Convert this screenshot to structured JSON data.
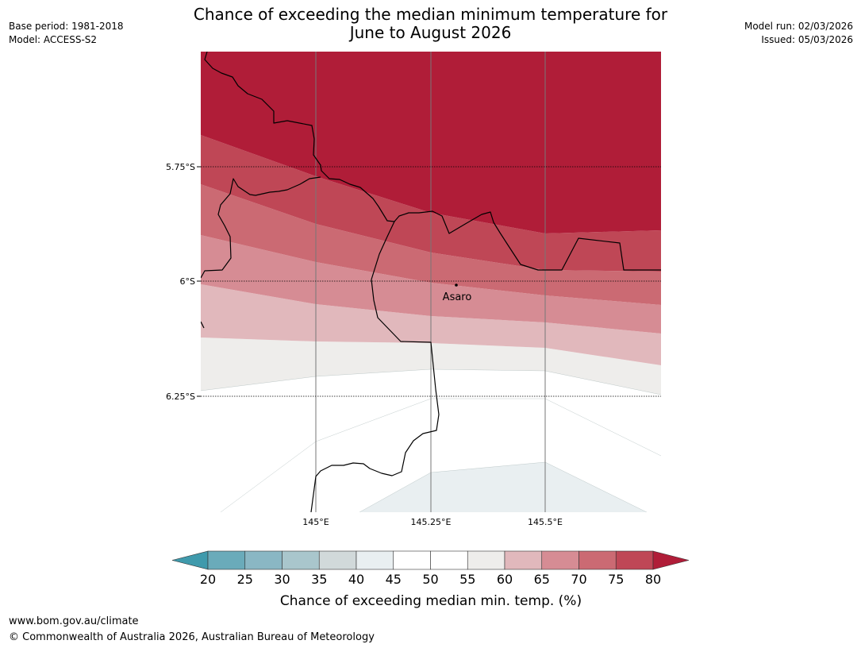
{
  "header": {
    "base_period": "Base period: 1981-2018",
    "model": "Model: ACCESS-S2",
    "title_line1": "Chance of exceeding the median minimum temperature for",
    "title_line2": "June to August 2026",
    "model_run": "Model run: 02/03/2026",
    "issued": "Issued: 05/03/2026"
  },
  "map": {
    "lat_labels": [
      "5.75°S",
      "6°S",
      "6.25°S"
    ],
    "lon_labels": [
      "145°E",
      "145.25°E",
      "145.5°E"
    ],
    "place": {
      "name": "Asaro"
    }
  },
  "colorbar": {
    "ticks": [
      "20",
      "25",
      "30",
      "35",
      "40",
      "45",
      "50",
      "55",
      "60",
      "65",
      "70",
      "75",
      "80"
    ],
    "label": "Chance of exceeding median min. temp. (%)",
    "colors": {
      "below20": "#3f9aac",
      "b20_25": "#6aabba",
      "b25_30": "#8ab7c4",
      "b30_35": "#a9c6cc",
      "b35_40": "#d1d9da",
      "b40_45": "#e9eff1",
      "b45_55": "#ffffff",
      "b55_60": "#eeedeb",
      "b60_65": "#e1b8bc",
      "b65_70": "#d68c94",
      "b70_75": "#cb6a73",
      "b75_80": "#bf4756",
      "above80": "#b01d38"
    }
  },
  "footer": {
    "url": "www.bom.gov.au/climate",
    "copyright": "© Commonwealth of Australia 2026, Australian Bureau of Meteorology"
  }
}
